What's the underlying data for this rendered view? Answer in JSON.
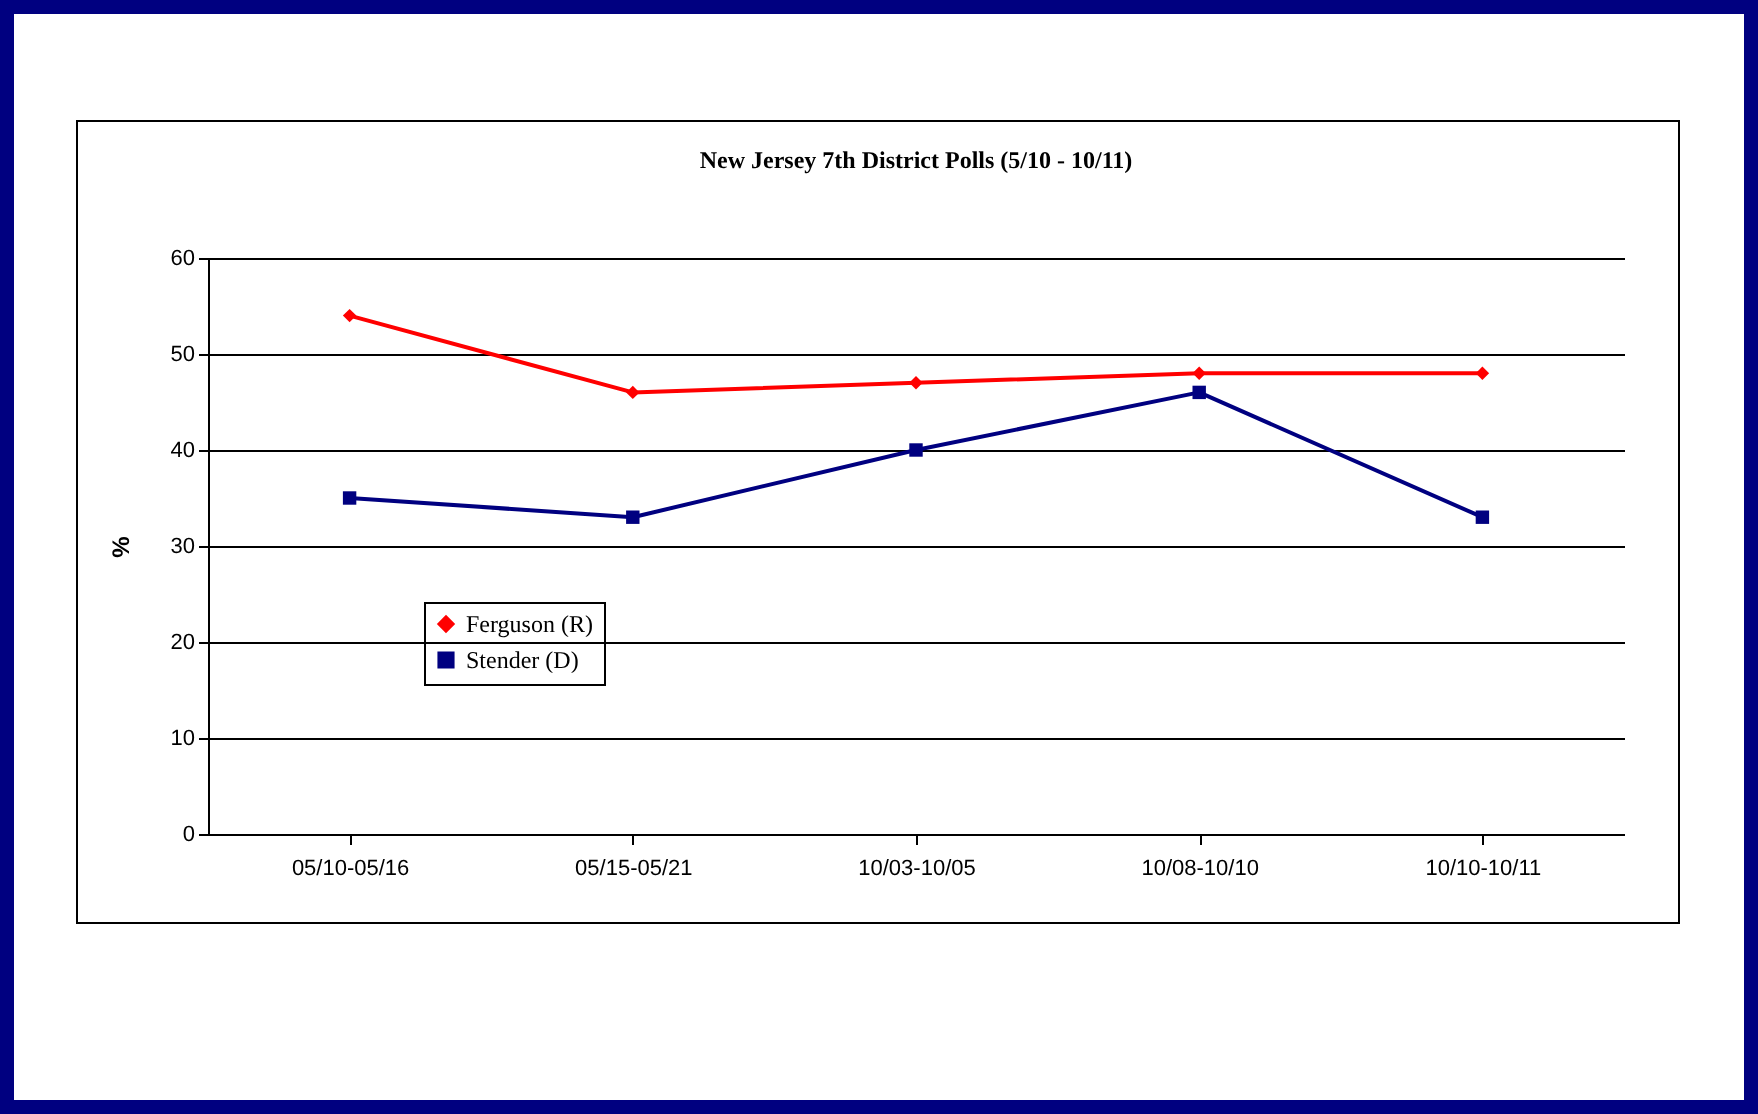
{
  "chart_data": {
    "type": "line",
    "title": "New Jersey 7th District Polls (5/10 - 10/11)",
    "ylabel": "%",
    "categories": [
      "05/10-05/16",
      "05/15-05/21",
      "10/03-10/05",
      "10/08-10/10",
      "10/10-10/11"
    ],
    "series": [
      {
        "name": "Ferguson (R)",
        "color": "#ff0000",
        "marker": "diamond",
        "values": [
          54,
          46,
          47,
          48,
          48
        ]
      },
      {
        "name": "Stender (D)",
        "color": "#000080",
        "marker": "square",
        "values": [
          35,
          33,
          40,
          46,
          33
        ]
      }
    ],
    "ylim": [
      0,
      60
    ],
    "yticks": [
      0,
      10,
      20,
      30,
      40,
      50,
      60
    ],
    "grid": "y",
    "legend": "left"
  }
}
